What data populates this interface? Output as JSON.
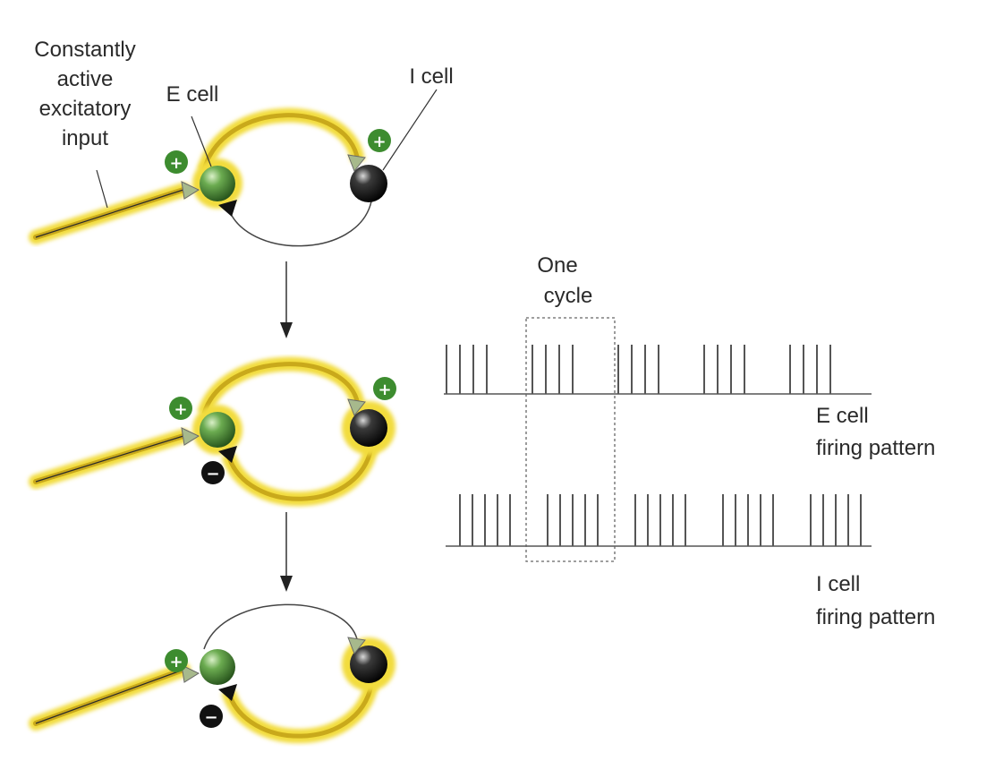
{
  "labels": {
    "input": [
      "Constantly",
      "active",
      "excitatory",
      "input"
    ],
    "e_cell": "E cell",
    "i_cell": "I cell",
    "one_cycle": [
      "One",
      "cycle"
    ],
    "e_pattern": [
      "E cell",
      "firing pattern"
    ],
    "i_pattern": [
      "I cell",
      "firing pattern"
    ]
  },
  "signs": {
    "plus": "+",
    "minus": "−"
  },
  "colors": {
    "glow": "#f2dc3c",
    "axon": "#c9a91b",
    "e_cell": "#4f8f3c",
    "i_cell": "#151515",
    "plus_badge": "#3d8c2f",
    "minus_badge": "#111111",
    "spike": "#555555",
    "synapse": "#a7b98c"
  },
  "stages": [
    {
      "top_arc": "active",
      "bottom_arc": "inactive",
      "e_active": true,
      "i_active": false,
      "plus_on_e": true,
      "plus_on_i": true,
      "minus_on_e": false
    },
    {
      "top_arc": "active",
      "bottom_arc": "active",
      "e_active": true,
      "i_active": true,
      "plus_on_e": true,
      "plus_on_i": true,
      "minus_on_e": true
    },
    {
      "top_arc": "inactive",
      "bottom_arc": "active",
      "e_active": false,
      "i_active": true,
      "plus_on_e": true,
      "plus_on_i": false,
      "minus_on_e": true
    }
  ],
  "firing": {
    "e_bursts": [
      4,
      4,
      4,
      4,
      4
    ],
    "i_bursts": [
      5,
      5,
      5,
      5,
      5
    ],
    "highlighted_cycle": 2
  }
}
